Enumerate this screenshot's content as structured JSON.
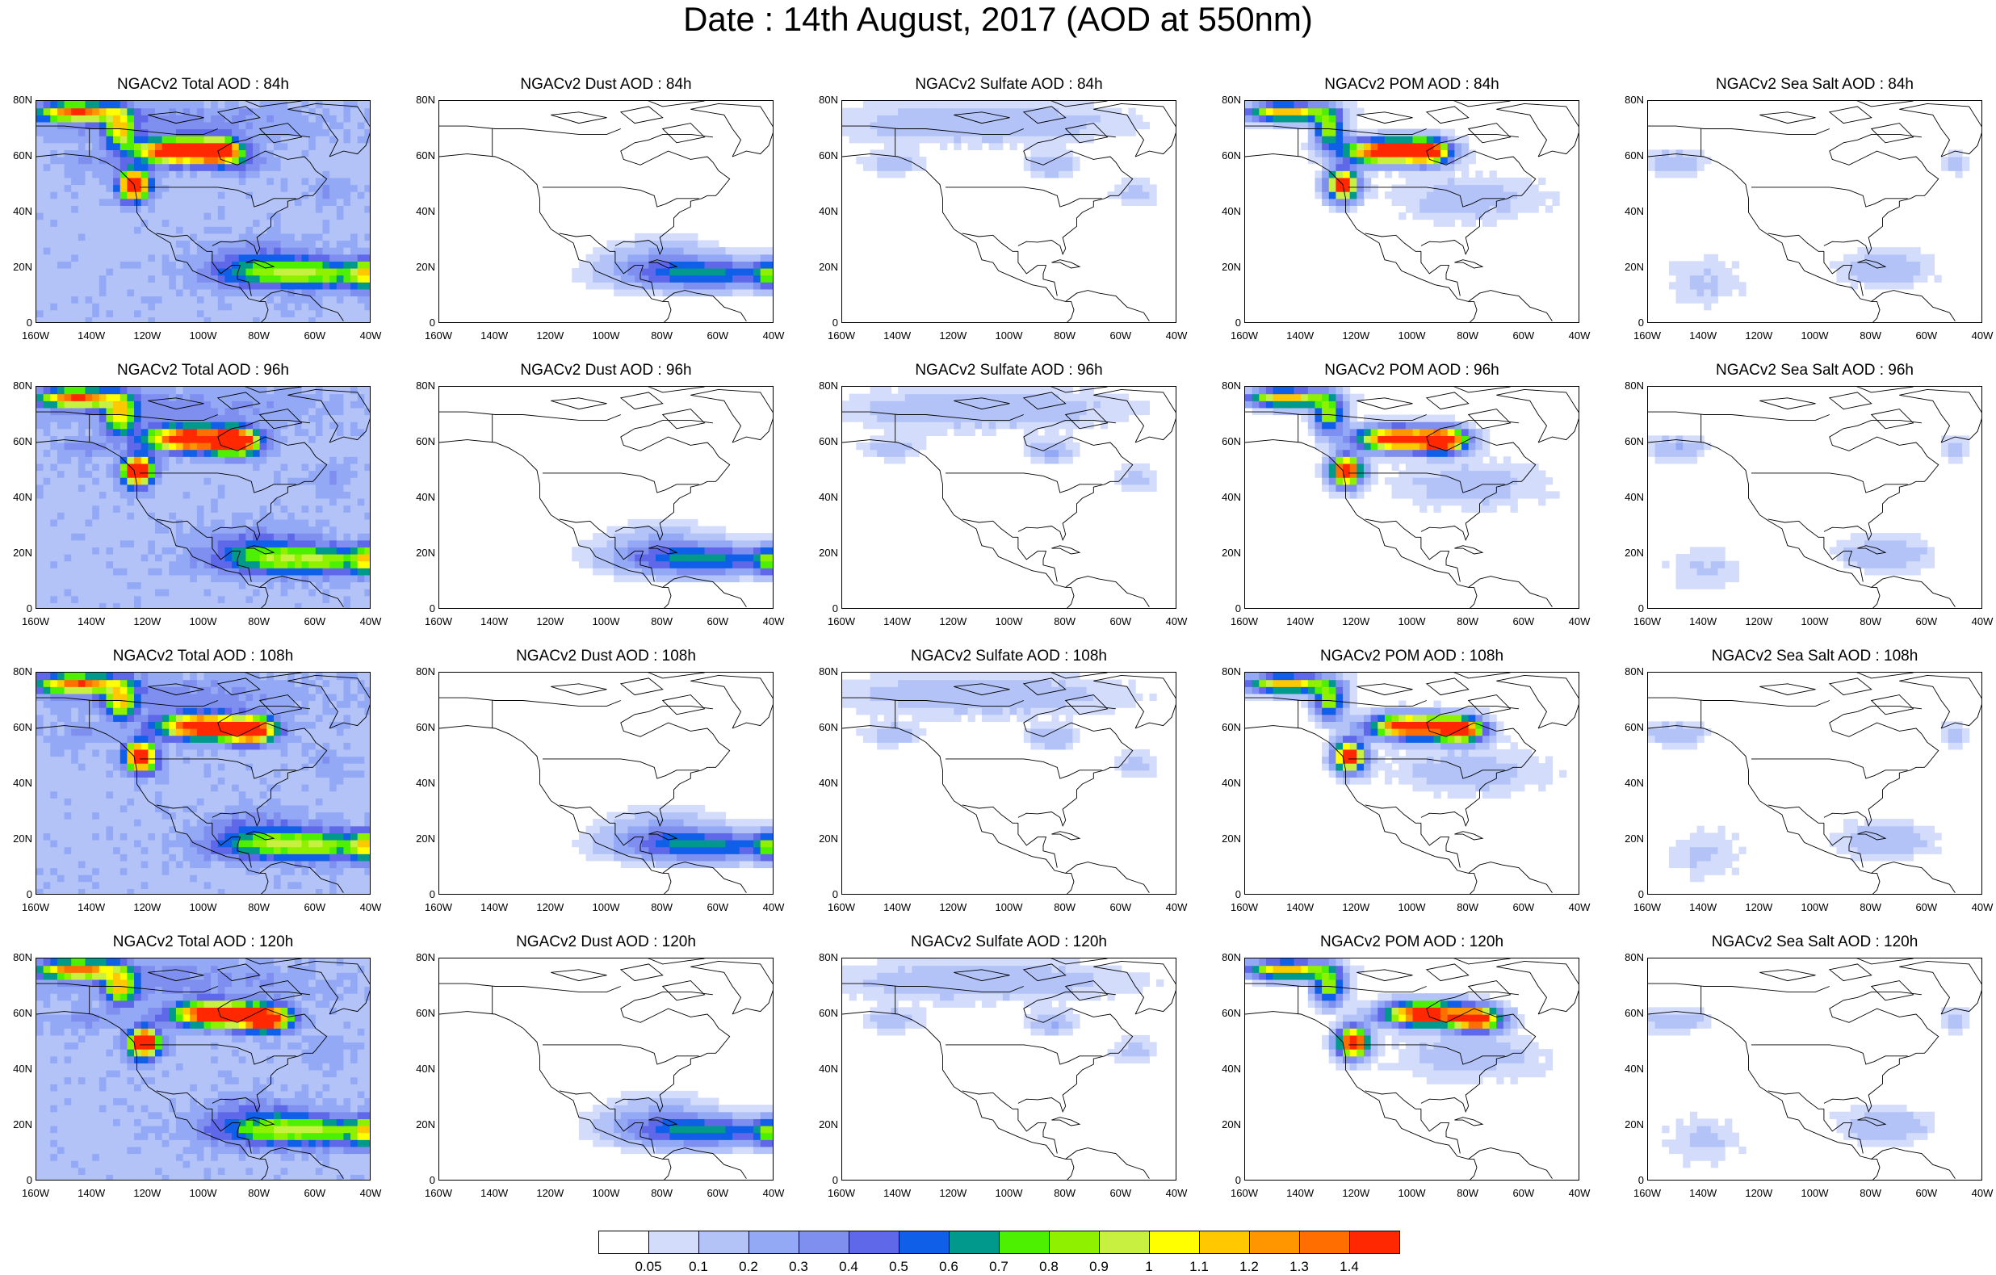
{
  "title": "Date : 14th August, 2017 (AOD at 550nm)",
  "chart_data": {
    "type": "heatmap",
    "variables": [
      "Total",
      "Dust",
      "Sulfate",
      "POM",
      "Sea Salt"
    ],
    "forecast_hours": [
      "84h",
      "96h",
      "108h",
      "120h"
    ],
    "panel_titles": [
      [
        "NGACv2 Total AOD : 84h",
        "NGACv2 Dust AOD : 84h",
        "NGACv2 Sulfate AOD : 84h",
        "NGACv2 POM AOD : 84h",
        "NGACv2 Sea Salt AOD : 84h"
      ],
      [
        "NGACv2 Total AOD : 96h",
        "NGACv2 Dust AOD : 96h",
        "NGACv2 Sulfate AOD : 96h",
        "NGACv2 POM AOD : 96h",
        "NGACv2 Sea Salt AOD : 96h"
      ],
      [
        "NGACv2 Total AOD : 108h",
        "NGACv2 Dust AOD : 108h",
        "NGACv2 Sulfate AOD : 108h",
        "NGACv2 POM AOD : 108h",
        "NGACv2 Sea Salt AOD : 108h"
      ],
      [
        "NGACv2 Total AOD : 120h",
        "NGACv2 Dust AOD : 120h",
        "NGACv2 Sulfate AOD : 120h",
        "NGACv2 POM AOD : 120h",
        "NGACv2 Sea Salt  AOD : 120h"
      ]
    ],
    "x_ticks": [
      "160W",
      "140W",
      "120W",
      "100W",
      "80W",
      "60W",
      "40W"
    ],
    "y_ticks": [
      "80N",
      "60N",
      "40N",
      "20N",
      "0"
    ],
    "xlim": [
      -160,
      -40
    ],
    "ylim": [
      0,
      80
    ],
    "colorbar": {
      "levels": [
        "0.05",
        "0.1",
        "0.2",
        "0.3",
        "0.4",
        "0.5",
        "0.6",
        "0.7",
        "0.8",
        "0.9",
        "1",
        "1.1",
        "1.2",
        "1.3",
        "1.4"
      ],
      "colors": [
        "#ffffff",
        "#d3dcfb",
        "#b3c3f8",
        "#93a9f6",
        "#7f8ff0",
        "#5f68e8",
        "#0f5fe8",
        "#00998c",
        "#4cf000",
        "#8ff000",
        "#c8f040",
        "#ffff00",
        "#ffc800",
        "#ff9600",
        "#ff6e00",
        "#ff2800"
      ]
    },
    "features": {
      "smoke_plume_lat": [
        48,
        65
      ],
      "smoke_plume_lon": [
        -130,
        -75
      ],
      "dust_band_lat": [
        10,
        25
      ],
      "dust_band_lon": [
        -100,
        -40
      ]
    }
  }
}
